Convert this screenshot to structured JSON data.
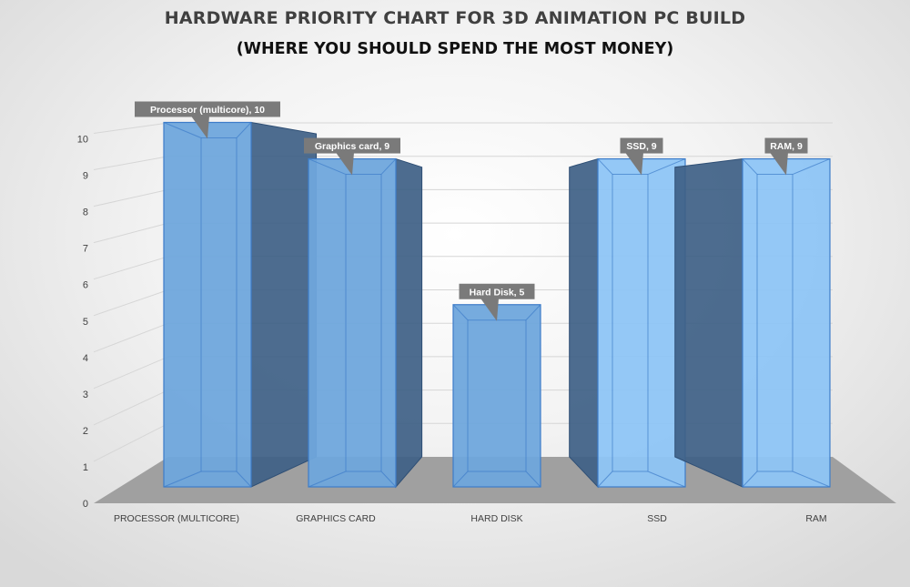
{
  "chart_data": {
    "type": "bar",
    "title": "HARDWARE PRIORITY CHART FOR 3D ANIMATION PC BUILD",
    "subtitle": "(WHERE YOU SHOULD SPEND THE MOST MONEY)",
    "categories": [
      "PROCESSOR (MULTICORE)",
      "GRAPHICS CARD",
      "HARD DISK",
      "SSD",
      "RAM"
    ],
    "values": [
      10,
      9,
      5,
      9,
      9
    ],
    "data_labels": [
      "Processor (multicore), 10",
      "Graphics card, 9",
      "Hard Disk, 5",
      "SSD, 9",
      "RAM, 9"
    ],
    "xlabel": "",
    "ylabel": "",
    "ylim": [
      0,
      10
    ],
    "yticks": [
      0,
      1,
      2,
      3,
      4,
      5,
      6,
      7,
      8,
      9,
      10
    ],
    "grid": true,
    "style": "3d-column",
    "colors": {
      "front": [
        "#6fa6dc",
        "#6fa6dc",
        "#6fa6dc",
        "#8ec5f6",
        "#8ec5f6"
      ],
      "side": "#3e5f85",
      "outline": "#3d7cc9",
      "floor": "#a0a0a0",
      "label_bg": "#7a7a7a"
    }
  }
}
